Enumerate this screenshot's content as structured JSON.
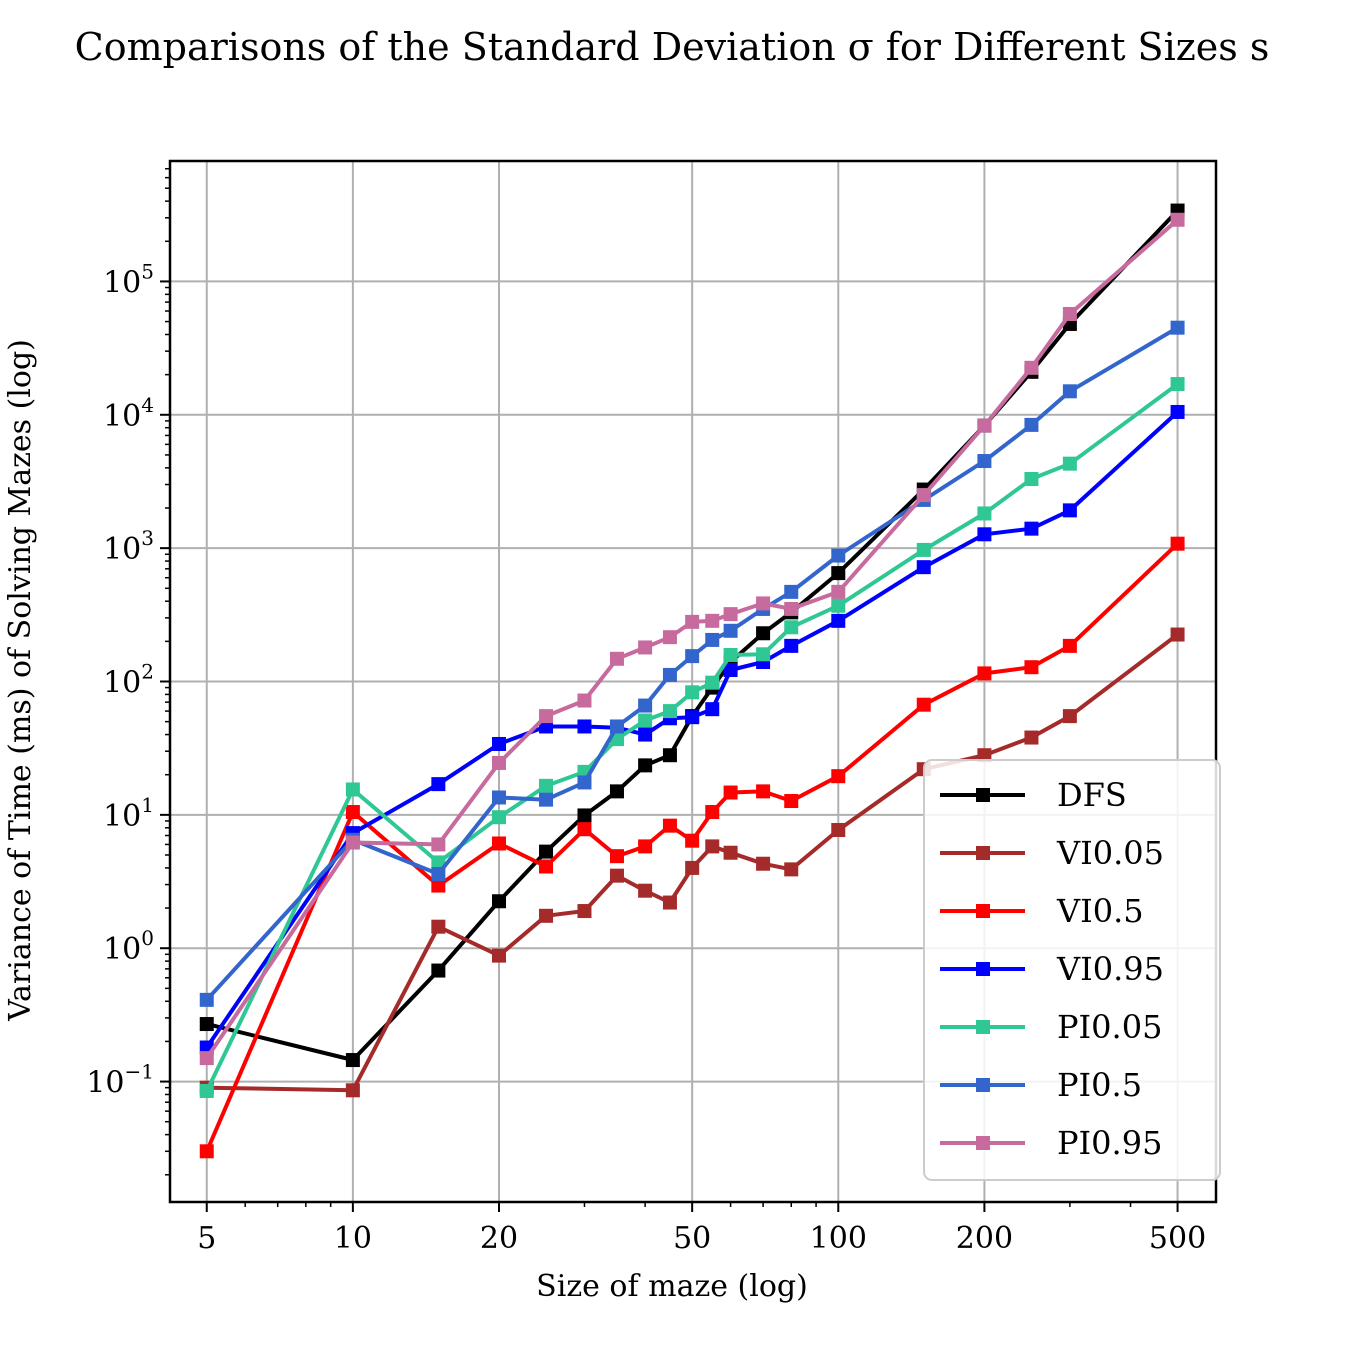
{
  "chart_data": {
    "type": "line",
    "title": "Comparisons of the Standard Deviation σ for Different Sizes s",
    "xlabel": "Size of maze (log)",
    "ylabel": "Variance of Time (ms) of Solving Mazes (log)",
    "xscale": "log",
    "yscale": "log",
    "xlim": [
      4.2,
      600
    ],
    "ylim": [
      0.0125,
      800000
    ],
    "x_ticks": [
      5,
      10,
      20,
      50,
      100,
      200,
      500
    ],
    "x_tick_labels": [
      "5",
      "10",
      "20",
      "50",
      "100",
      "200",
      "500"
    ],
    "y_ticks": [
      0.1,
      1,
      10,
      100,
      1000,
      10000,
      100000
    ],
    "y_tick_exponents": [
      "−1",
      "0",
      "1",
      "2",
      "3",
      "4",
      "5"
    ],
    "y_tick_base": "10",
    "grid": true,
    "legend_position": "lower-right",
    "x": [
      5,
      10,
      15,
      20,
      25,
      30,
      35,
      40,
      45,
      50,
      55,
      60,
      70,
      80,
      100,
      150,
      200,
      250,
      300,
      500
    ],
    "series": [
      {
        "name": "DFS",
        "color": "#000000",
        "values": [
          0.27,
          0.145,
          0.68,
          2.25,
          5.3,
          9.9,
          15,
          23.5,
          28,
          55,
          90,
          140,
          230,
          330,
          650,
          2750,
          8300,
          21000,
          48000,
          340000
        ]
      },
      {
        "name": "VI0.05",
        "color": "#a52a2a",
        "values": [
          0.09,
          0.086,
          1.45,
          0.88,
          1.75,
          1.9,
          3.5,
          2.7,
          2.2,
          4.0,
          5.8,
          5.2,
          4.3,
          3.9,
          7.7,
          22,
          28,
          38,
          55,
          225
        ]
      },
      {
        "name": "VI0.5",
        "color": "#ff0000",
        "values": [
          0.03,
          10.5,
          2.95,
          6.1,
          4.1,
          7.8,
          4.9,
          5.8,
          8.3,
          6.4,
          10.5,
          14.7,
          15,
          12.7,
          19.5,
          67,
          115,
          128,
          185,
          1080
        ]
      },
      {
        "name": "VI0.95",
        "color": "#0000ff",
        "values": [
          0.18,
          7.3,
          17,
          34,
          46,
          46,
          45,
          40,
          53,
          54,
          62,
          122,
          140,
          185,
          285,
          720,
          1270,
          1400,
          1920,
          10500
        ]
      },
      {
        "name": "PI0.05",
        "color": "#2fc794",
        "values": [
          0.085,
          15.5,
          4.4,
          9.6,
          16.5,
          21,
          37,
          51,
          60,
          83,
          98,
          158,
          160,
          255,
          370,
          970,
          1820,
          3300,
          4300,
          17000
        ]
      },
      {
        "name": "PI0.5",
        "color": "#3366cc",
        "values": [
          0.41,
          6.5,
          3.6,
          13.5,
          13,
          17.5,
          46,
          66,
          112,
          155,
          205,
          240,
          350,
          470,
          880,
          2300,
          4500,
          8400,
          15000,
          45000
        ]
      },
      {
        "name": "PI0.95",
        "color": "#c76b9e",
        "values": [
          0.15,
          6.2,
          6.0,
          24.5,
          55,
          72,
          148,
          180,
          215,
          280,
          285,
          320,
          385,
          350,
          470,
          2500,
          8300,
          22500,
          57000,
          290000
        ]
      }
    ]
  }
}
